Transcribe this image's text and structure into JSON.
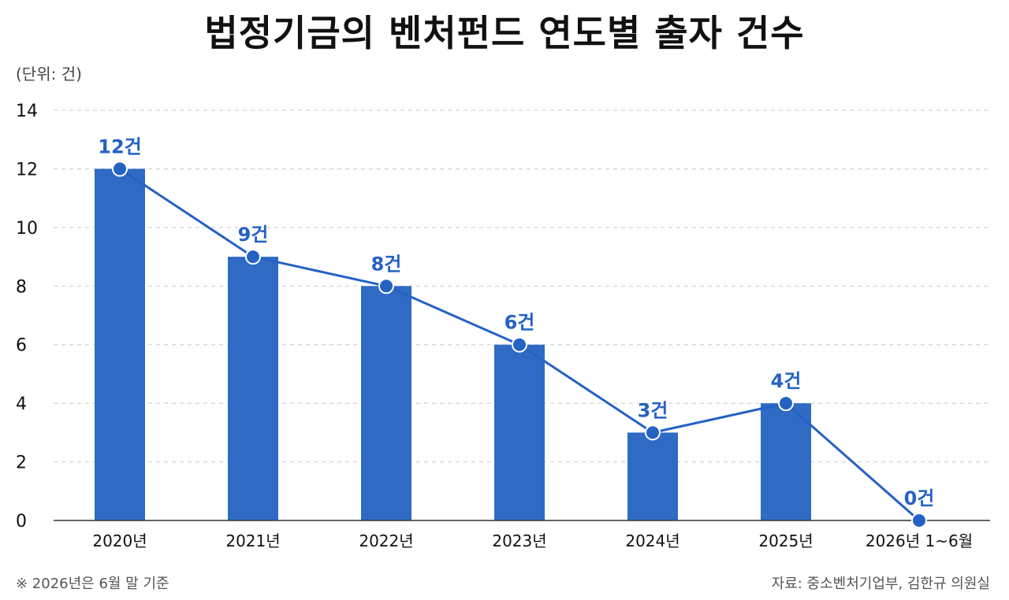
{
  "title": "법정기금의 벤처펀드 연도별 출자 건수",
  "unit_note": "(단위: 건)",
  "footnote": "※ 2026년은 6월 말 기준",
  "source": "자료: 중소벤처기업부, 김한규 의원실",
  "colors": {
    "bar": "#2f6bc4",
    "line": "#2462c4",
    "label": "#2462c4",
    "grid": "#cccccc"
  },
  "chart_data": {
    "type": "bar",
    "overlay": "line",
    "categories": [
      "2020년",
      "2021년",
      "2022년",
      "2023년",
      "2024년",
      "2025년",
      "2026년 1~6월"
    ],
    "values": [
      12,
      9,
      8,
      6,
      3,
      4,
      0
    ],
    "data_labels": [
      "12건",
      "9건",
      "8건",
      "6건",
      "3건",
      "4건",
      "0건"
    ],
    "ylim": [
      0,
      14
    ],
    "yticks": [
      0,
      2,
      4,
      6,
      8,
      10,
      12,
      14
    ],
    "grid": true
  }
}
